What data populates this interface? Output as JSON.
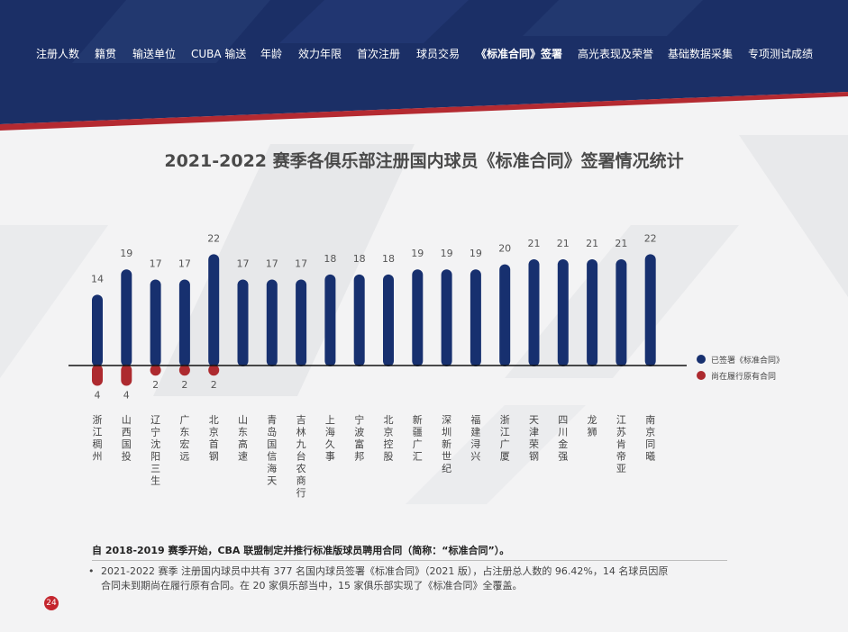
{
  "nav": {
    "items": [
      {
        "label": "注册人数",
        "active": false
      },
      {
        "label": "籍贯",
        "active": false
      },
      {
        "label": "输送单位",
        "active": false
      },
      {
        "label": "CUBA 输送",
        "active": false
      },
      {
        "label": "年龄",
        "active": false
      },
      {
        "label": "效力年限",
        "active": false
      },
      {
        "label": "首次注册",
        "active": false
      },
      {
        "label": "球员交易",
        "active": false
      },
      {
        "label": "《标准合同》签署",
        "active": true
      },
      {
        "label": "高光表现及荣誉",
        "active": false
      },
      {
        "label": "基础数据采集",
        "active": false
      },
      {
        "label": "专项测试成绩",
        "active": false
      }
    ]
  },
  "colors": {
    "header_navy": "#1b2f66",
    "accent_red": "#b42a31",
    "signed": "#17306f",
    "unsigned": "#ad2a2f"
  },
  "chart_data": {
    "type": "bar",
    "title": "2021-2022 赛季各俱乐部注册国内球员《标准合同》签署情况统计",
    "categories": [
      "浙江稠州",
      "山西国投",
      "辽宁沈阳三生",
      "广东宏远",
      "北京首钢",
      "山东高速",
      "青岛国信海天",
      "吉林九台农商行",
      "上海久事",
      "宁波富邦",
      "北京控股",
      "新疆广汇",
      "深圳新世纪",
      "福建浔兴",
      "浙江广厦",
      "天津荣钢",
      "四川金强",
      "龙狮",
      "江苏肯帝亚",
      "南京同曦"
    ],
    "series": [
      {
        "name": "已签署《标准合同》",
        "color": "#17306f",
        "values": [
          14,
          19,
          17,
          17,
          22,
          17,
          17,
          17,
          18,
          18,
          18,
          19,
          19,
          19,
          20,
          21,
          21,
          21,
          21,
          22
        ]
      },
      {
        "name": "尚在履行原有合同",
        "color": "#ad2a2f",
        "values": [
          4,
          4,
          2,
          2,
          2,
          0,
          0,
          0,
          0,
          0,
          0,
          0,
          0,
          0,
          0,
          0,
          0,
          0,
          0,
          0
        ]
      }
    ],
    "legend_position": "right",
    "grid": false
  },
  "note": {
    "headline": "自 2018-2019 赛季开始，CBA 联盟制定并推行标准版球员聘用合同（简称：“标准合同”）。",
    "bullet": "•",
    "body": "2021-2022 赛季 注册国内球员中共有 377 名国内球员签署《标准合同》（2021 版），占注册总人数的 96.42%，14 名球员因原合同未到期尚在履行原有合同。在 20 家俱乐部当中，15 家俱乐部实现了《标准合同》全覆盖。"
  },
  "page_number": "24"
}
